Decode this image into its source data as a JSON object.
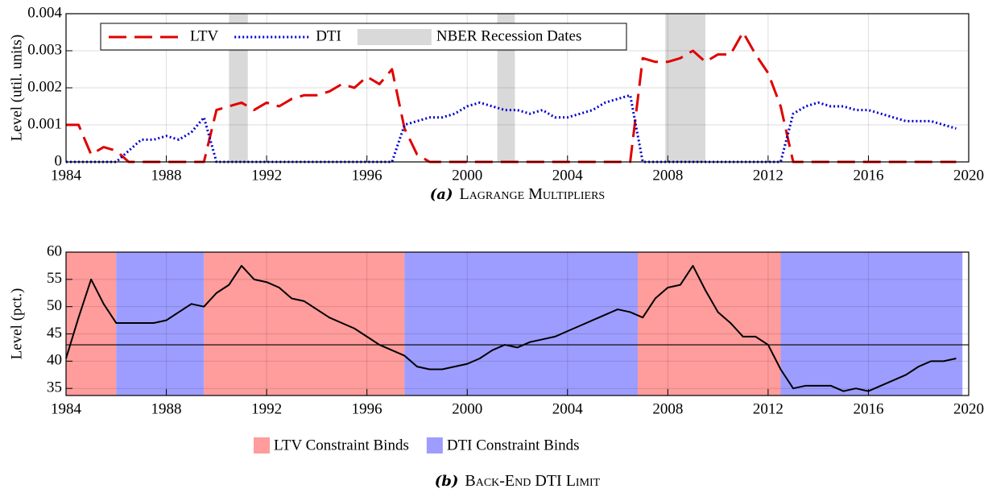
{
  "chart_data": [
    {
      "type": "line",
      "caption_label": "(a)",
      "caption": "Lagrange Multipliers",
      "y_label": "Level (util. units)",
      "xlim": [
        1984,
        2020
      ],
      "xticks": [
        1984,
        1988,
        1992,
        1996,
        2000,
        2004,
        2008,
        2012,
        2016,
        2020
      ],
      "ylim": [
        0,
        0.004
      ],
      "yticks": [
        0,
        0.001,
        0.002,
        0.003,
        0.004
      ],
      "grid": true,
      "legend": "upper left",
      "x": [
        1984,
        1984.5,
        1985,
        1985.5,
        1986,
        1986.5,
        1987,
        1987.5,
        1988,
        1988.5,
        1989,
        1989.5,
        1990,
        1990.5,
        1991,
        1991.5,
        1992,
        1992.5,
        1993,
        1993.5,
        1994,
        1994.5,
        1995,
        1995.5,
        1996,
        1996.5,
        1997,
        1997.5,
        1998,
        1998.5,
        1999,
        1999.5,
        2000,
        2000.5,
        2001,
        2001.5,
        2002,
        2002.5,
        2003,
        2003.5,
        2004,
        2004.5,
        2005,
        2005.5,
        2006,
        2006.5,
        2007,
        2007.5,
        2008,
        2008.5,
        2009,
        2009.5,
        2010,
        2010.5,
        2011,
        2011.5,
        2012,
        2012.5,
        2013,
        2013.5,
        2014,
        2014.5,
        2015,
        2015.5,
        2016,
        2016.5,
        2017,
        2017.5,
        2018,
        2018.5,
        2019,
        2019.5
      ],
      "series": [
        {
          "name": "LTV",
          "color": "#e00000",
          "style": "dashed",
          "values": [
            0.001,
            0.001,
            0.0002,
            0.0004,
            0.0003,
            0,
            0,
            0,
            0,
            0,
            0,
            0,
            0.0014,
            0.0015,
            0.0016,
            0.0014,
            0.0016,
            0.0015,
            0.0017,
            0.0018,
            0.0018,
            0.0019,
            0.0021,
            0.002,
            0.0023,
            0.0021,
            0.0025,
            0.0009,
            0.0002,
            0,
            0,
            0,
            0,
            0,
            0,
            0,
            0,
            0,
            0,
            0,
            0,
            0,
            0,
            0,
            0,
            0,
            0.0028,
            0.0027,
            0.0027,
            0.0028,
            0.003,
            0.0027,
            0.0029,
            0.0029,
            0.0035,
            0.0029,
            0.0024,
            0.0015,
            0,
            0,
            0,
            0,
            0,
            0,
            0,
            0,
            0,
            0,
            0,
            0,
            0,
            0
          ]
        },
        {
          "name": "DTI",
          "color": "#0000d0",
          "style": "dotted",
          "values": [
            0,
            0,
            0,
            0,
            0,
            0.0003,
            0.0006,
            0.0006,
            0.0007,
            0.0006,
            0.0008,
            0.0012,
            0,
            0,
            0,
            0,
            0,
            0,
            0,
            0,
            0,
            0,
            0,
            0,
            0,
            0,
            0,
            0.001,
            0.0011,
            0.0012,
            0.0012,
            0.0013,
            0.0015,
            0.0016,
            0.0015,
            0.0014,
            0.0014,
            0.0013,
            0.0014,
            0.0012,
            0.0012,
            0.0013,
            0.0014,
            0.0016,
            0.0017,
            0.0018,
            0,
            0,
            0,
            0,
            0,
            0,
            0,
            0,
            0,
            0,
            0,
            0,
            0.0013,
            0.0015,
            0.0016,
            0.0015,
            0.0015,
            0.0014,
            0.0014,
            0.0013,
            0.0012,
            0.0011,
            0.0011,
            0.0011,
            0.001,
            0.0009
          ]
        }
      ],
      "bands": [
        {
          "name": "NBER Recession Dates",
          "color": "#d9d9d9",
          "spans": [
            [
              1990.5,
              1991.25
            ],
            [
              2001.2,
              2001.9
            ],
            [
              2007.9,
              2009.5
            ]
          ]
        }
      ]
    },
    {
      "type": "line",
      "caption_label": "(b)",
      "caption": "Back-End DTI Limit",
      "y_label": "Level (pct.)",
      "xlim": [
        1984,
        2020
      ],
      "xticks": [
        1984,
        1988,
        1992,
        1996,
        2000,
        2004,
        2008,
        2012,
        2016,
        2020
      ],
      "ylim": [
        33.7,
        60
      ],
      "yticks": [
        35,
        40,
        45,
        50,
        55,
        60
      ],
      "grid": true,
      "legend": "below",
      "hline": 43,
      "x": [
        1984,
        1984.5,
        1985,
        1985.5,
        1986,
        1986.5,
        1987,
        1987.5,
        1988,
        1988.5,
        1989,
        1989.5,
        1990,
        1990.5,
        1991,
        1991.5,
        1992,
        1992.5,
        1993,
        1993.5,
        1994,
        1994.5,
        1995,
        1995.5,
        1996,
        1996.5,
        1997,
        1997.5,
        1998,
        1998.5,
        1999,
        1999.5,
        2000,
        2000.5,
        2001,
        2001.5,
        2002,
        2002.5,
        2003,
        2003.5,
        2004,
        2004.5,
        2005,
        2005.5,
        2006,
        2006.5,
        2007,
        2007.5,
        2008,
        2008.5,
        2009,
        2009.5,
        2010,
        2010.5,
        2011,
        2011.5,
        2012,
        2012.5,
        2013,
        2013.5,
        2014,
        2014.5,
        2015,
        2015.5,
        2016,
        2016.5,
        2017,
        2017.5,
        2018,
        2018.5,
        2019,
        2019.5
      ],
      "series": [
        {
          "color": "#000000",
          "style": "solid",
          "values": [
            40.5,
            48,
            55,
            50.5,
            47,
            47,
            47,
            47,
            47.5,
            49,
            50.5,
            50,
            52.5,
            54,
            57.5,
            55,
            54.5,
            53.5,
            51.5,
            51,
            49.5,
            48,
            47,
            46,
            44.5,
            43,
            42,
            41,
            39,
            38.5,
            38.5,
            39,
            39.5,
            40.5,
            42,
            43,
            42.5,
            43.5,
            44,
            44.5,
            45.5,
            46.5,
            47.5,
            48.5,
            49.5,
            49,
            48,
            51.5,
            53.5,
            54,
            57.5,
            53,
            49,
            47,
            44.5,
            44.5,
            43,
            38.5,
            35,
            35.5,
            35.5,
            35.5,
            34.5,
            35,
            34.5,
            35.5,
            36.5,
            37.5,
            39,
            40,
            40,
            40.5
          ]
        }
      ],
      "bands": [
        {
          "name": "LTV Constraint Binds",
          "color": "#ff9c9c",
          "spans": [
            [
              1984,
              1986
            ],
            [
              1989.5,
              1997.5
            ],
            [
              2006.8,
              2012.5
            ]
          ]
        },
        {
          "name": "DTI Constraint Binds",
          "color": "#9d9dff",
          "spans": [
            [
              1986,
              1989.5
            ],
            [
              1997.5,
              2006.8
            ],
            [
              2012.5,
              2019.75
            ]
          ]
        }
      ]
    }
  ]
}
